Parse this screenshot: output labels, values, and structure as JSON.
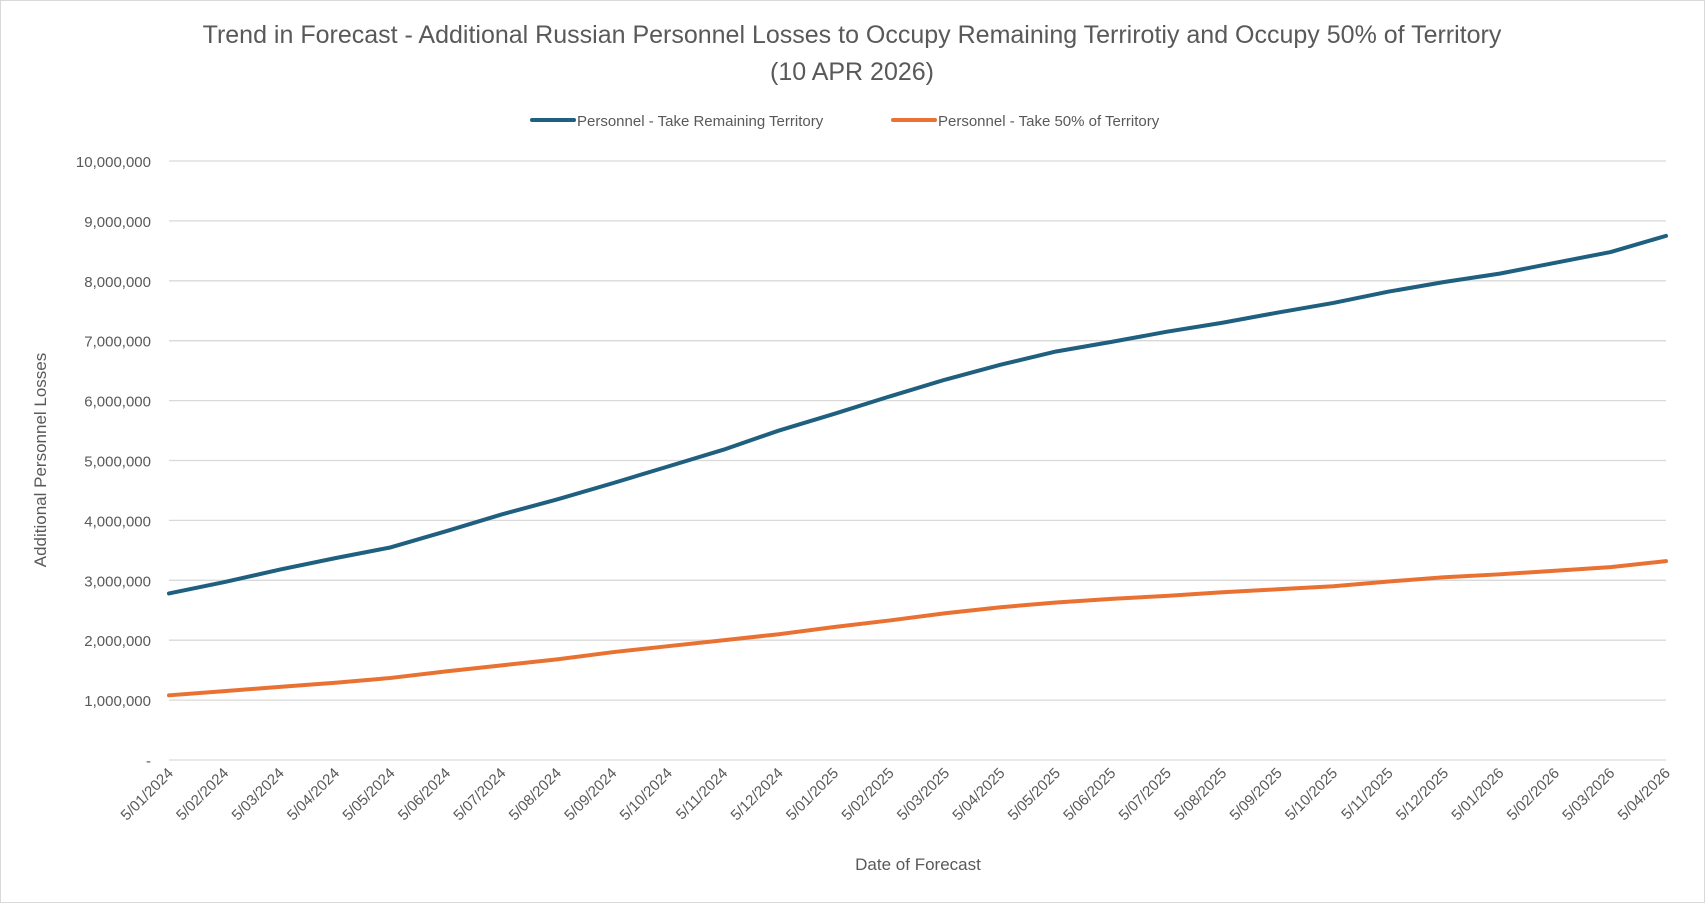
{
  "chart_data": {
    "type": "line",
    "title": "Trend in Forecast - Additional Russian Personnel Losses to Occupy Remaining Terrirotiy and Occupy 50% of Territory",
    "subtitle": "(10 APR 2026)",
    "xlabel": "Date of Forecast",
    "ylabel": "Additional Personnel Losses",
    "ylim": [
      0,
      10000000
    ],
    "yticks": [
      0,
      1000000,
      2000000,
      3000000,
      4000000,
      5000000,
      6000000,
      7000000,
      8000000,
      9000000,
      10000000
    ],
    "ytick_labels": [
      "-",
      "1,000,000",
      "2,000,000",
      "3,000,000",
      "4,000,000",
      "5,000,000",
      "6,000,000",
      "7,000,000",
      "8,000,000",
      "9,000,000",
      "10,000,000"
    ],
    "grid": true,
    "legend": "top",
    "x": [
      "5/01/2024",
      "5/02/2024",
      "5/03/2024",
      "5/04/2024",
      "5/05/2024",
      "5/06/2024",
      "5/07/2024",
      "5/08/2024",
      "5/09/2024",
      "5/10/2024",
      "5/11/2024",
      "5/12/2024",
      "5/01/2025",
      "5/02/2025",
      "5/03/2025",
      "5/04/2025",
      "5/05/2025",
      "5/06/2025",
      "5/07/2025",
      "5/08/2025",
      "5/09/2025",
      "5/10/2025",
      "5/11/2025",
      "5/12/2025",
      "5/01/2026",
      "5/02/2026",
      "5/03/2026",
      "5/04/2026"
    ],
    "series": [
      {
        "name": "Personnel - Take Remaining Territory",
        "color": "#1f5f7f",
        "values": [
          2780000,
          2970000,
          3180000,
          3370000,
          3550000,
          3820000,
          4100000,
          4350000,
          4620000,
          4900000,
          5180000,
          5500000,
          5780000,
          6070000,
          6350000,
          6600000,
          6820000,
          6980000,
          7150000,
          7300000,
          7470000,
          7630000,
          7820000,
          7980000,
          8120000,
          8300000,
          8480000,
          8750000
        ]
      },
      {
        "name": "Personnel - Take 50% of Territory",
        "color": "#e97132",
        "values": [
          1080000,
          1150000,
          1220000,
          1290000,
          1370000,
          1480000,
          1580000,
          1680000,
          1800000,
          1900000,
          2000000,
          2100000,
          2220000,
          2330000,
          2450000,
          2550000,
          2630000,
          2690000,
          2740000,
          2800000,
          2850000,
          2900000,
          2980000,
          3050000,
          3100000,
          3160000,
          3220000,
          3320000
        ]
      }
    ]
  }
}
